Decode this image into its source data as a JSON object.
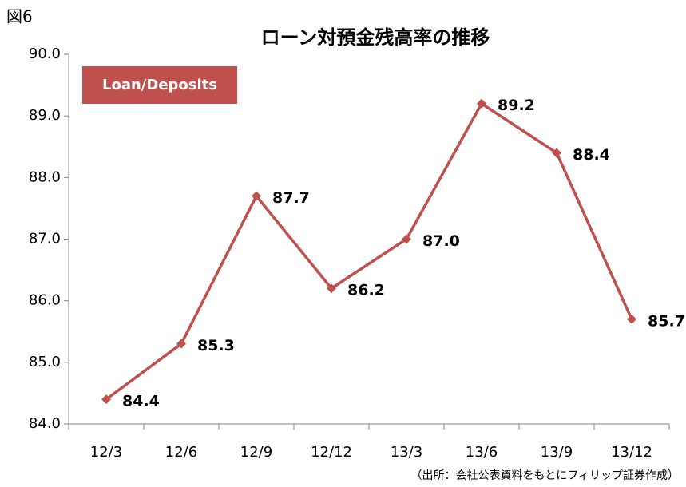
{
  "chart_data": {
    "type": "line",
    "figure_label": "図6",
    "title": "ローン対預金残高率の推移",
    "source": "（出所：会社公表資料をもとにフィリップ証券作成）",
    "categories": [
      "12/3",
      "12/6",
      "12/9",
      "12/12",
      "13/3",
      "13/6",
      "13/9",
      "13/12"
    ],
    "series": [
      {
        "name": "Loan/Deposits",
        "color": "#c0504d",
        "values": [
          84.4,
          85.3,
          87.7,
          86.2,
          87.0,
          89.2,
          88.4,
          85.7
        ],
        "value_labels": [
          "84.4",
          "85.3",
          "87.7",
          "86.2",
          "87.0",
          "89.2",
          "88.4",
          "85.7"
        ]
      }
    ],
    "ylim": [
      84,
      90
    ],
    "yticks": [
      {
        "value": 84,
        "label": "84.0"
      },
      {
        "value": 85,
        "label": "85.0"
      },
      {
        "value": 86,
        "label": "86.0"
      },
      {
        "value": 87,
        "label": "87.0"
      },
      {
        "value": 88,
        "label": "88.0"
      },
      {
        "value": 89,
        "label": "89.0"
      },
      {
        "value": 90,
        "label": "90.0"
      }
    ],
    "grid": false,
    "legend": "upper left"
  }
}
